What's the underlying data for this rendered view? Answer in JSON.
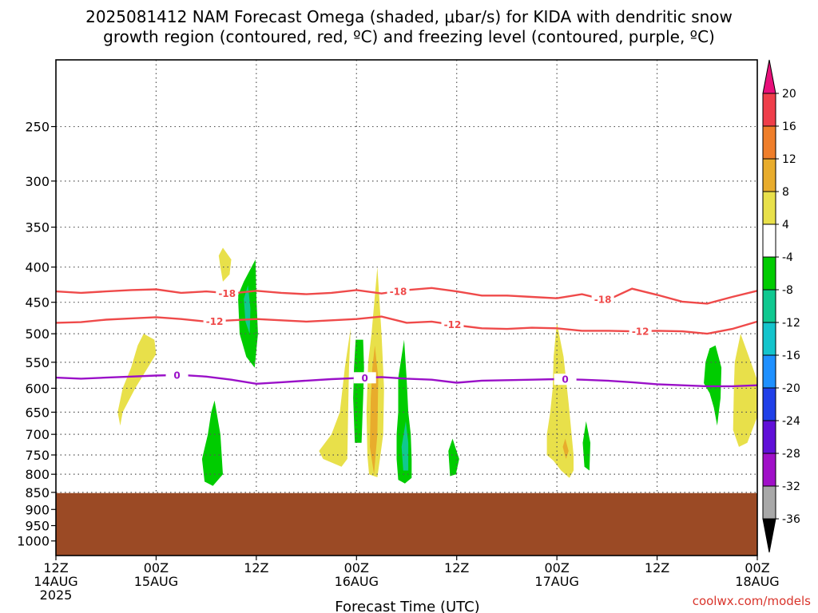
{
  "title_line1": "2025081412 NAM Forecast Omega (shaded, μbar/s) for KIDA with dendritic snow",
  "title_line2": "growth region (contoured, red, ºC) and freezing level (contoured, purple, ºC)",
  "credit": "coolwx.com/models",
  "chart_data": {
    "type": "contour",
    "title": "2025081412 NAM Forecast Omega (shaded, μbar/s) for KIDA with dendritic snow growth region (contoured, red, ºC) and freezing level (contoured, purple, ºC)",
    "xlabel": "Forecast Time (UTC)",
    "ylabel": "",
    "x_range_hours": [
      0,
      84
    ],
    "y_range_hpa": [
      1050,
      200
    ],
    "y_scale": "log",
    "grid": true,
    "y_ticks": [
      250,
      300,
      350,
      400,
      450,
      500,
      550,
      600,
      650,
      700,
      750,
      800,
      850,
      900,
      950,
      1000
    ],
    "x_ticks": [
      {
        "hour": 0,
        "lines": [
          "12Z",
          "14AUG",
          "2025"
        ]
      },
      {
        "hour": 12,
        "lines": [
          "00Z",
          "15AUG"
        ]
      },
      {
        "hour": 24,
        "lines": [
          "12Z"
        ]
      },
      {
        "hour": 36,
        "lines": [
          "00Z",
          "16AUG"
        ]
      },
      {
        "hour": 48,
        "lines": [
          "12Z"
        ]
      },
      {
        "hour": 60,
        "lines": [
          "00Z",
          "17AUG"
        ]
      },
      {
        "hour": 72,
        "lines": [
          "12Z"
        ]
      },
      {
        "hour": 84,
        "lines": [
          "00Z",
          "18AUG"
        ]
      }
    ],
    "surface_pressure_hpa": 852,
    "colorbar": {
      "labels": [
        "20",
        "16",
        "12",
        "8",
        "4",
        "-4",
        "-8",
        "-12",
        "-16",
        "-20",
        "-24",
        "-28",
        "-32",
        "-36"
      ],
      "upper_colors": [
        "#ef3e4a",
        "#ef7e2a",
        "#e8ac2c",
        "#e8e04a",
        "#ffffff"
      ],
      "lower_colors": [
        "#00cc00",
        "#10c890",
        "#14c4cc",
        "#1e90ff",
        "#2040e8",
        "#6010d8",
        "#a010c8",
        "#a8a8a8"
      ],
      "top_arrow_color": "#e8107a",
      "bottom_arrow_color": "#000000"
    },
    "series": [
      {
        "name": "-18",
        "color": "#ef4a4a",
        "label_hours": [
          20.5,
          41,
          65.5
        ],
        "points": [
          [
            0,
            434
          ],
          [
            3,
            436
          ],
          [
            6,
            434
          ],
          [
            9,
            432
          ],
          [
            12,
            431
          ],
          [
            15,
            436
          ],
          [
            18,
            434
          ],
          [
            21,
            437
          ],
          [
            24,
            433
          ],
          [
            27,
            436
          ],
          [
            30,
            438
          ],
          [
            33,
            436
          ],
          [
            36,
            432
          ],
          [
            39,
            437
          ],
          [
            42,
            432
          ],
          [
            45,
            429
          ],
          [
            48,
            434
          ],
          [
            51,
            440
          ],
          [
            54,
            440
          ],
          [
            57,
            442
          ],
          [
            60,
            444
          ],
          [
            63,
            438
          ],
          [
            66,
            447
          ],
          [
            69,
            430
          ],
          [
            72,
            439
          ],
          [
            75,
            449
          ],
          [
            78,
            452
          ],
          [
            81,
            442
          ],
          [
            84,
            433
          ]
        ]
      },
      {
        "name": "-12",
        "color": "#ef4a4a",
        "label_hours": [
          19,
          47.5,
          70
        ],
        "points": [
          [
            0,
            482
          ],
          [
            3,
            481
          ],
          [
            6,
            477
          ],
          [
            9,
            475
          ],
          [
            12,
            473
          ],
          [
            15,
            476
          ],
          [
            18,
            480
          ],
          [
            21,
            478
          ],
          [
            24,
            476
          ],
          [
            27,
            478
          ],
          [
            30,
            480
          ],
          [
            33,
            478
          ],
          [
            36,
            476
          ],
          [
            39,
            472
          ],
          [
            42,
            482
          ],
          [
            45,
            480
          ],
          [
            48,
            486
          ],
          [
            51,
            491
          ],
          [
            54,
            492
          ],
          [
            57,
            490
          ],
          [
            60,
            491
          ],
          [
            63,
            495
          ],
          [
            66,
            495
          ],
          [
            69,
            496
          ],
          [
            72,
            495
          ],
          [
            75,
            496
          ],
          [
            78,
            500
          ],
          [
            81,
            492
          ],
          [
            84,
            480
          ]
        ]
      },
      {
        "name": "0",
        "color": "#9a10c8",
        "label_hours": [
          14.5,
          37,
          61
        ],
        "points": [
          [
            0,
            579
          ],
          [
            3,
            581
          ],
          [
            6,
            579
          ],
          [
            9,
            577
          ],
          [
            12,
            575
          ],
          [
            15,
            574
          ],
          [
            18,
            577
          ],
          [
            21,
            583
          ],
          [
            24,
            591
          ],
          [
            27,
            588
          ],
          [
            30,
            585
          ],
          [
            33,
            582
          ],
          [
            36,
            580
          ],
          [
            39,
            578
          ],
          [
            42,
            581
          ],
          [
            45,
            583
          ],
          [
            48,
            589
          ],
          [
            51,
            585
          ],
          [
            54,
            584
          ],
          [
            57,
            583
          ],
          [
            60,
            582
          ],
          [
            63,
            583
          ],
          [
            66,
            585
          ],
          [
            69,
            588
          ],
          [
            72,
            592
          ],
          [
            75,
            594
          ],
          [
            78,
            596
          ],
          [
            81,
            596
          ],
          [
            84,
            594
          ]
        ]
      }
    ],
    "omega_regions": [
      {
        "value": 4,
        "points": [
          [
            20,
            375
          ],
          [
            21,
            390
          ],
          [
            20.8,
            410
          ],
          [
            20,
            420
          ],
          [
            19.7,
            400
          ],
          [
            19.5,
            385
          ]
        ]
      },
      {
        "value": 4,
        "points": [
          [
            10.5,
            500
          ],
          [
            11.8,
            510
          ],
          [
            12,
            535
          ],
          [
            11,
            560
          ],
          [
            9.5,
            600
          ],
          [
            8,
            650
          ],
          [
            7.7,
            680
          ],
          [
            7.4,
            650
          ],
          [
            8,
            600
          ],
          [
            9,
            560
          ],
          [
            9.8,
            520
          ]
        ]
      },
      {
        "value": -4,
        "points": [
          [
            23.9,
            390
          ],
          [
            24,
            440
          ],
          [
            24.2,
            500
          ],
          [
            23.8,
            560
          ],
          [
            22.8,
            540
          ],
          [
            22,
            500
          ],
          [
            21.8,
            440
          ],
          [
            22.5,
            420
          ]
        ]
      },
      {
        "value": -8,
        "points": [
          [
            23,
            425
          ],
          [
            23.3,
            460
          ],
          [
            23.2,
            500
          ],
          [
            22.7,
            480
          ],
          [
            22.5,
            445
          ]
        ]
      },
      {
        "value": -4,
        "points": [
          [
            19,
            625
          ],
          [
            19.7,
            700
          ],
          [
            20,
            800
          ],
          [
            18.8,
            832
          ],
          [
            17.8,
            820
          ],
          [
            17.5,
            760
          ],
          [
            18.2,
            700
          ],
          [
            18.6,
            650
          ]
        ]
      },
      {
        "value": 4,
        "points": [
          [
            35.3,
            490
          ],
          [
            35.1,
            560
          ],
          [
            35,
            650
          ],
          [
            34.9,
            760
          ],
          [
            34.2,
            780
          ],
          [
            32,
            760
          ],
          [
            31.5,
            740
          ],
          [
            33,
            700
          ],
          [
            34,
            650
          ],
          [
            34.6,
            560
          ]
        ]
      },
      {
        "value": 4,
        "points": [
          [
            38.5,
            400
          ],
          [
            39,
            500
          ],
          [
            39.3,
            600
          ],
          [
            39.2,
            700
          ],
          [
            38.8,
            760
          ],
          [
            38.5,
            808
          ],
          [
            37.5,
            800
          ],
          [
            37.3,
            750
          ],
          [
            37.2,
            650
          ],
          [
            37.4,
            550
          ],
          [
            37.8,
            500
          ]
        ]
      },
      {
        "value": 8,
        "points": [
          [
            38.2,
            520
          ],
          [
            38.6,
            580
          ],
          [
            38.5,
            700
          ],
          [
            38.1,
            800
          ],
          [
            37.6,
            730
          ],
          [
            37.7,
            620
          ],
          [
            37.9,
            560
          ]
        ]
      },
      {
        "value": -4,
        "points": [
          [
            36.8,
            510
          ],
          [
            36.9,
            560
          ],
          [
            36.8,
            620
          ],
          [
            36.6,
            720
          ],
          [
            35.8,
            720
          ],
          [
            35.6,
            620
          ],
          [
            35.7,
            560
          ],
          [
            35.9,
            510
          ]
        ]
      },
      {
        "value": -4,
        "points": [
          [
            41.7,
            510
          ],
          [
            42,
            580
          ],
          [
            42.2,
            650
          ],
          [
            42.5,
            700
          ],
          [
            42.6,
            760
          ],
          [
            42.6,
            810
          ],
          [
            41.8,
            825
          ],
          [
            41,
            815
          ],
          [
            40.8,
            760
          ],
          [
            40.8,
            700
          ],
          [
            41,
            650
          ],
          [
            41,
            580
          ]
        ]
      },
      {
        "value": -8,
        "points": [
          [
            41.9,
            670
          ],
          [
            42.2,
            720
          ],
          [
            42.2,
            790
          ],
          [
            41.6,
            790
          ],
          [
            41.4,
            730
          ]
        ]
      },
      {
        "value": -4,
        "points": [
          [
            47.5,
            710
          ],
          [
            48.3,
            760
          ],
          [
            47.9,
            800
          ],
          [
            47.2,
            805
          ],
          [
            47,
            740
          ]
        ]
      },
      {
        "value": 4,
        "points": [
          [
            60,
            482
          ],
          [
            60.8,
            540
          ],
          [
            61.4,
            630
          ],
          [
            62,
            750
          ],
          [
            62,
            790
          ],
          [
            61.5,
            810
          ],
          [
            60.5,
            790
          ],
          [
            59.6,
            765
          ],
          [
            58.8,
            750
          ],
          [
            58.8,
            700
          ],
          [
            59.2,
            650
          ],
          [
            59.5,
            600
          ],
          [
            59.6,
            540
          ]
        ]
      },
      {
        "value": 8,
        "points": [
          [
            61,
            710
          ],
          [
            61.4,
            740
          ],
          [
            61.1,
            760
          ],
          [
            60.7,
            730
          ]
        ]
      },
      {
        "value": -4,
        "points": [
          [
            63.5,
            670
          ],
          [
            64,
            720
          ],
          [
            63.9,
            790
          ],
          [
            63.3,
            780
          ],
          [
            63.1,
            720
          ]
        ]
      },
      {
        "value": -4,
        "points": [
          [
            79,
            520
          ],
          [
            79.7,
            560
          ],
          [
            79.6,
            620
          ],
          [
            79.2,
            680
          ],
          [
            78.8,
            640
          ],
          [
            78.3,
            610
          ],
          [
            77.6,
            590
          ],
          [
            77.8,
            550
          ],
          [
            78.3,
            525
          ]
        ]
      },
      {
        "value": 4,
        "points": [
          [
            82,
            500
          ],
          [
            83,
            540
          ],
          [
            83.9,
            580
          ],
          [
            84,
            660
          ],
          [
            82.8,
            720
          ],
          [
            81.8,
            730
          ],
          [
            81.1,
            690
          ],
          [
            81.2,
            600
          ],
          [
            81.3,
            550
          ]
        ]
      }
    ]
  }
}
